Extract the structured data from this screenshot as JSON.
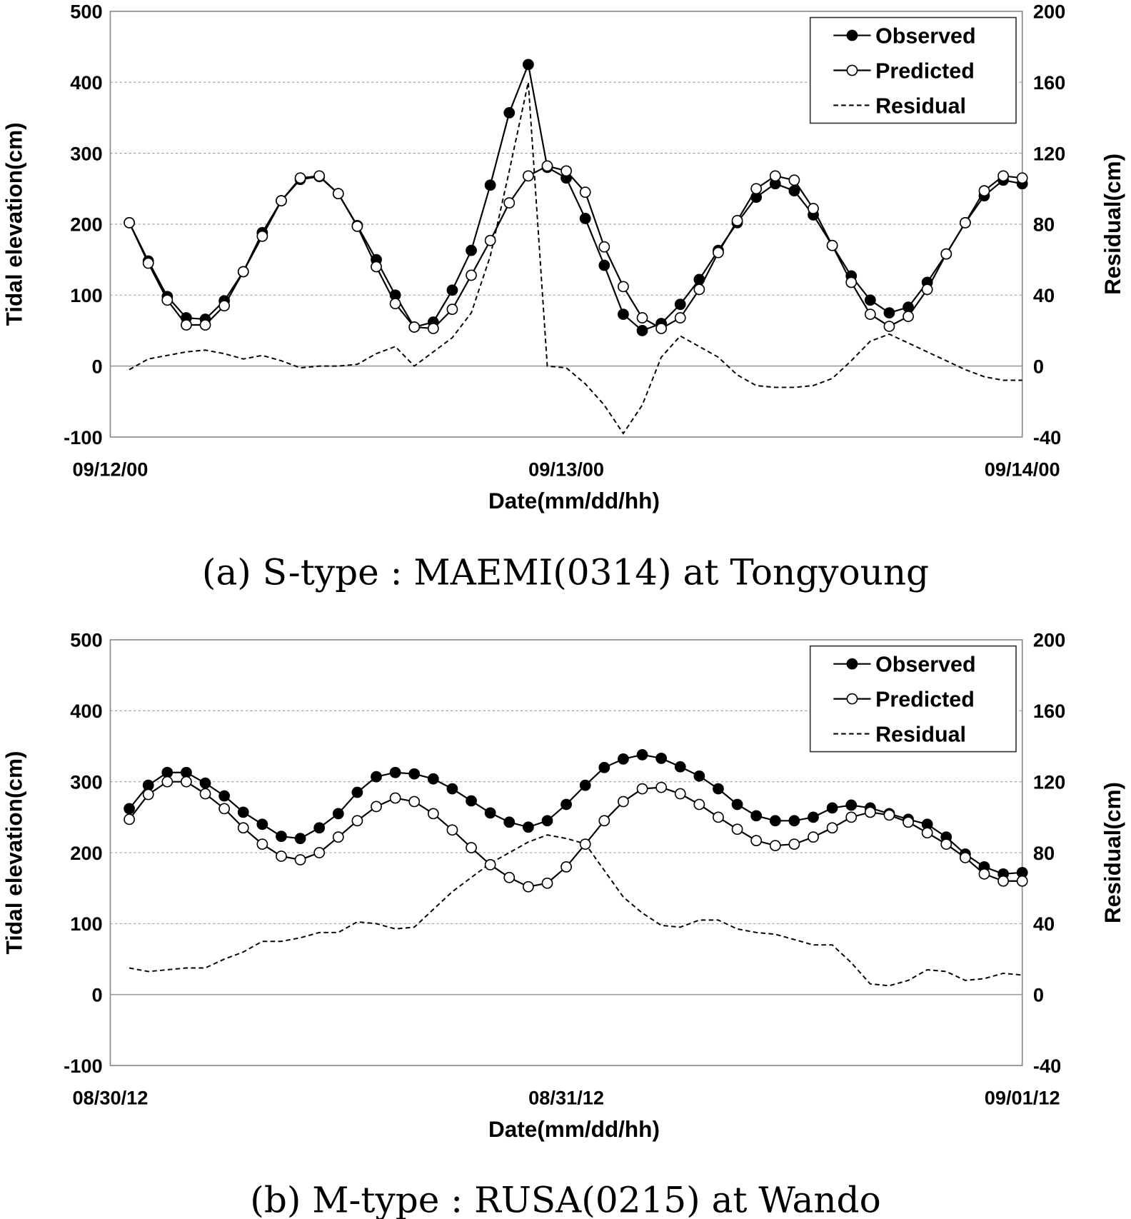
{
  "chart_data": [
    {
      "type": "line",
      "caption": "(a) S-type : MAEMI(0314) at Tongyoung",
      "xlabel": "Date(mm/dd/hh)",
      "ylabel": "Tidal elevation(cm)",
      "y2label": "Residual(cm)",
      "x_tick_labels": [
        "09/12/00",
        "09/13/00",
        "09/14/00"
      ],
      "x_hours": [
        1,
        2,
        3,
        4,
        5,
        6,
        7,
        8,
        9,
        10,
        11,
        12,
        13,
        14,
        15,
        16,
        17,
        18,
        19,
        20,
        21,
        22,
        23,
        24,
        25,
        26,
        27,
        28,
        29,
        30,
        31,
        32,
        33,
        34,
        35,
        36,
        37,
        38,
        39,
        40,
        41,
        42,
        43,
        44,
        45,
        46,
        47,
        48
      ],
      "ylim": [
        -100,
        500
      ],
      "y_ticks": [
        -100,
        0,
        100,
        200,
        300,
        400,
        500
      ],
      "y2lim": [
        -40,
        200
      ],
      "y2_ticks": [
        -40,
        0,
        40,
        80,
        120,
        160,
        200
      ],
      "grid": "horizontal dotted",
      "legend_position": "top-right",
      "series": [
        {
          "name": "Observed",
          "axis": "left",
          "marker": "filled-circle",
          "color": "#000000",
          "values": [
            202,
            148,
            98,
            68,
            66,
            92,
            133,
            188,
            233,
            263,
            267,
            243,
            198,
            150,
            100,
            55,
            62,
            107,
            163,
            255,
            357,
            425,
            280,
            265,
            208,
            142,
            73,
            50,
            60,
            87,
            122,
            163,
            202,
            238,
            257,
            247,
            213,
            170,
            127,
            93,
            75,
            83,
            118,
            158,
            202,
            240,
            262,
            257
          ]
        },
        {
          "name": "Predicted",
          "axis": "left",
          "marker": "open-circle",
          "color": "#000000",
          "values": [
            202,
            145,
            93,
            58,
            58,
            85,
            133,
            183,
            233,
            265,
            268,
            243,
            197,
            140,
            88,
            55,
            53,
            80,
            128,
            177,
            230,
            268,
            282,
            275,
            245,
            168,
            112,
            68,
            53,
            68,
            108,
            160,
            205,
            250,
            268,
            262,
            222,
            170,
            118,
            73,
            56,
            70,
            108,
            158,
            202,
            247,
            268,
            265
          ]
        },
        {
          "name": "Residual",
          "axis": "right",
          "marker": "none",
          "dash": "dashed",
          "color": "#000000",
          "values": [
            -2,
            4,
            6,
            8,
            9,
            7,
            4,
            6,
            3,
            -1,
            0,
            0,
            1,
            7,
            11,
            0,
            8,
            16,
            30,
            62,
            110,
            160,
            0,
            -1,
            -10,
            -22,
            -38,
            -22,
            5,
            17,
            11,
            5,
            -5,
            -11,
            -12,
            -12,
            -11,
            -7,
            3,
            14,
            18,
            13,
            8,
            3,
            -2,
            -6,
            -8,
            -8
          ]
        }
      ]
    },
    {
      "type": "line",
      "caption": "(b) M-type : RUSA(0215) at Wando",
      "xlabel": "Date(mm/dd/hh)",
      "ylabel": "Tidal elevation(cm)",
      "y2label": "Residual(cm)",
      "x_tick_labels": [
        "08/30/12",
        "08/31/12",
        "09/01/12"
      ],
      "x_hours": [
        1,
        2,
        3,
        4,
        5,
        6,
        7,
        8,
        9,
        10,
        11,
        12,
        13,
        14,
        15,
        16,
        17,
        18,
        19,
        20,
        21,
        22,
        23,
        24,
        25,
        26,
        27,
        28,
        29,
        30,
        31,
        32,
        33,
        34,
        35,
        36,
        37,
        38,
        39,
        40,
        41,
        42,
        43,
        44,
        45,
        46,
        47,
        48
      ],
      "ylim": [
        -100,
        500
      ],
      "y_ticks": [
        -100,
        0,
        100,
        200,
        300,
        400,
        500
      ],
      "y2lim": [
        -40,
        200
      ],
      "y2_ticks": [
        -40,
        0,
        40,
        80,
        120,
        160,
        200
      ],
      "grid": "horizontal dotted",
      "legend_position": "top-right",
      "series": [
        {
          "name": "Observed",
          "axis": "left",
          "marker": "filled-circle",
          "color": "#000000",
          "values": [
            262,
            295,
            313,
            313,
            298,
            280,
            257,
            240,
            223,
            220,
            235,
            255,
            285,
            307,
            313,
            311,
            304,
            290,
            273,
            256,
            243,
            236,
            245,
            268,
            295,
            320,
            332,
            338,
            333,
            321,
            308,
            290,
            268,
            252,
            245,
            245,
            250,
            263,
            267,
            263,
            255,
            247,
            240,
            222,
            198,
            180,
            170,
            172
          ]
        },
        {
          "name": "Predicted",
          "axis": "left",
          "marker": "open-circle",
          "color": "#000000",
          "values": [
            247,
            282,
            300,
            300,
            283,
            262,
            235,
            212,
            195,
            190,
            200,
            222,
            245,
            265,
            277,
            272,
            255,
            232,
            207,
            183,
            165,
            152,
            157,
            180,
            212,
            245,
            272,
            290,
            292,
            283,
            268,
            250,
            233,
            217,
            210,
            212,
            222,
            235,
            250,
            257,
            253,
            243,
            228,
            212,
            193,
            170,
            160,
            160
          ]
        },
        {
          "name": "Residual",
          "axis": "right",
          "marker": "none",
          "dash": "dashed",
          "color": "#000000",
          "values": [
            15,
            13,
            14,
            15,
            15,
            20,
            24,
            30,
            30,
            32,
            35,
            35,
            41,
            40,
            37,
            38,
            48,
            58,
            66,
            74,
            80,
            86,
            90,
            88,
            85,
            70,
            55,
            46,
            39,
            38,
            42,
            42,
            37,
            35,
            34,
            31,
            28,
            28,
            18,
            6,
            5,
            8,
            14,
            13,
            8,
            9,
            12,
            11
          ]
        }
      ]
    }
  ]
}
